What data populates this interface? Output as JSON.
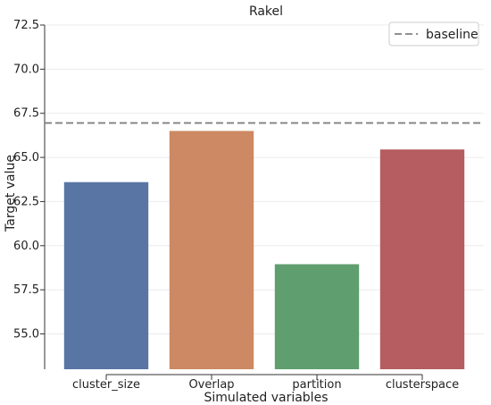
{
  "chart_data": {
    "type": "bar",
    "title": "Rakel",
    "xlabel": "Simulated variables",
    "ylabel": "Target value",
    "categories": [
      "cluster_size",
      "Overlap",
      "partition",
      "clusterspace"
    ],
    "values": [
      63.6,
      66.5,
      58.95,
      65.45
    ],
    "colors": [
      "#5875a4",
      "#cc8963",
      "#5f9e6e",
      "#b55d60"
    ],
    "ylim": [
      53.0,
      72.5
    ],
    "yticks": [
      "55.0",
      "57.5",
      "60.0",
      "62.5",
      "65.0",
      "67.5",
      "70.0",
      "72.5"
    ],
    "baseline": {
      "label": "baseline",
      "value": 66.95,
      "color": "#808080"
    },
    "grid": true,
    "legend": "top-right"
  }
}
